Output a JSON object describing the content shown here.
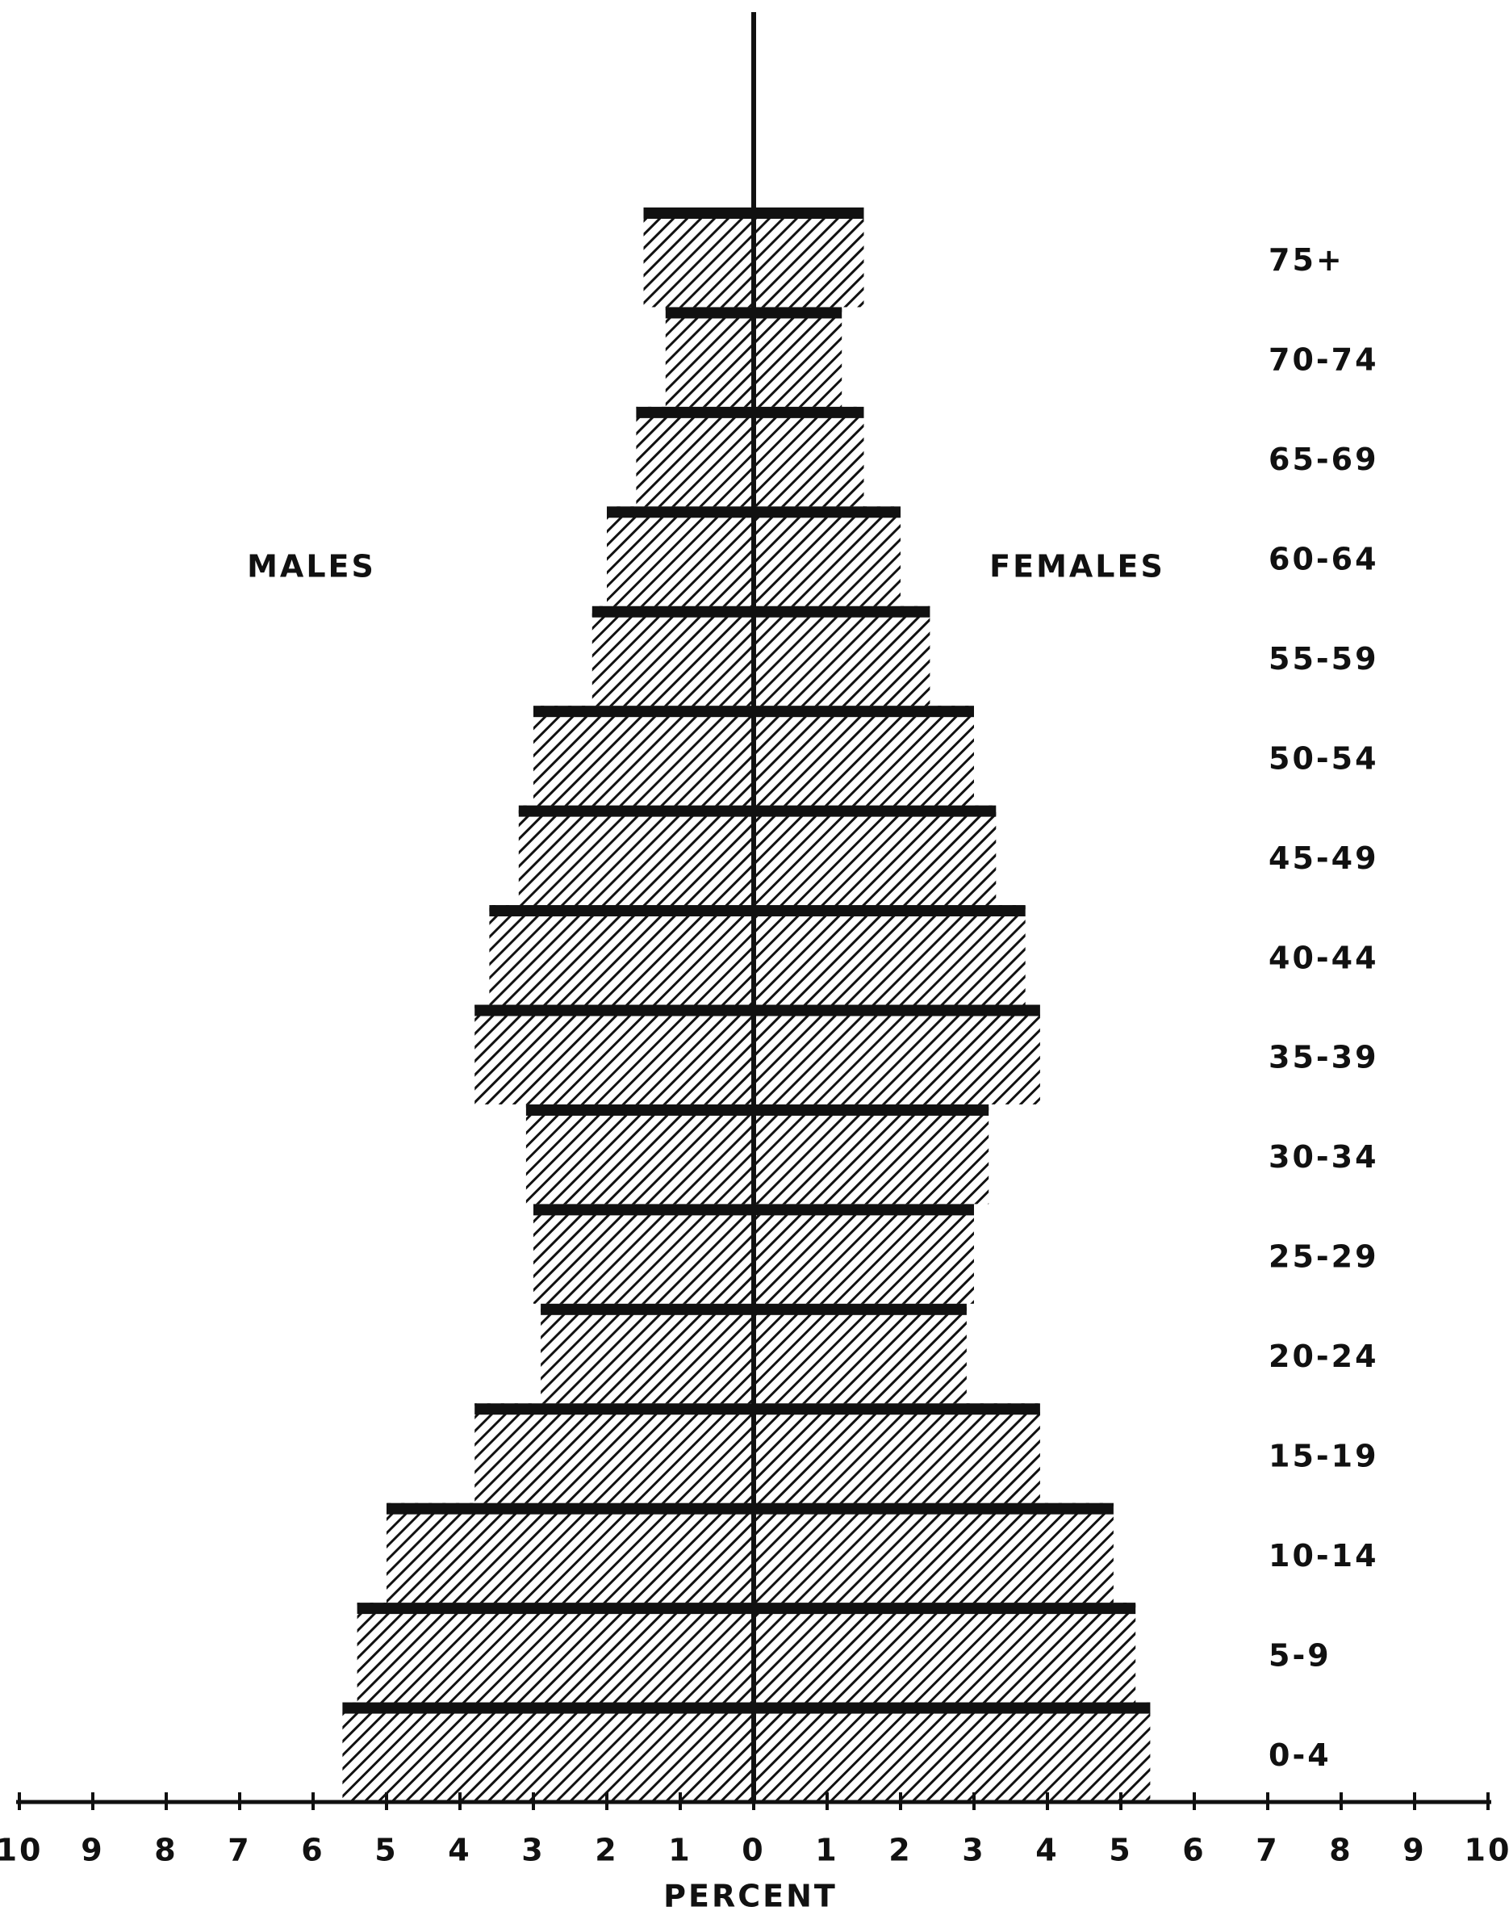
{
  "chart_data": {
    "type": "pyramid",
    "x_label": "PERCENT",
    "categories": [
      "75+",
      "70-74",
      "65-69",
      "60-64",
      "55-59",
      "50-54",
      "45-49",
      "40-44",
      "35-39",
      "30-34",
      "25-29",
      "20-24",
      "15-19",
      "10-14",
      "5-9",
      "0-4"
    ],
    "series": [
      {
        "name": "MALES",
        "color": "#111111",
        "side": "left",
        "values": [
          1.5,
          1.2,
          1.6,
          2.0,
          2.2,
          3.0,
          3.2,
          3.6,
          3.8,
          3.1,
          3.0,
          2.9,
          3.8,
          5.0,
          5.4,
          5.6
        ]
      },
      {
        "name": "FEMALES",
        "color": "#111111",
        "side": "right",
        "values": [
          1.5,
          1.2,
          1.5,
          2.0,
          2.4,
          3.0,
          3.3,
          3.7,
          3.9,
          3.2,
          3.0,
          2.9,
          3.9,
          4.9,
          5.2,
          5.4
        ]
      }
    ],
    "xlim": [
      -10,
      10
    ],
    "xticks": [
      {
        "value": -10,
        "label": "10"
      },
      {
        "value": -9,
        "label": "9"
      },
      {
        "value": -8,
        "label": "8"
      },
      {
        "value": -7,
        "label": "7"
      },
      {
        "value": -6,
        "label": "6"
      },
      {
        "value": -5,
        "label": "5"
      },
      {
        "value": -4,
        "label": "4"
      },
      {
        "value": -3,
        "label": "3"
      },
      {
        "value": -2,
        "label": "2"
      },
      {
        "value": -1,
        "label": "1"
      },
      0,
      1,
      2,
      3,
      4,
      5,
      6,
      7,
      8,
      9,
      10
    ]
  }
}
